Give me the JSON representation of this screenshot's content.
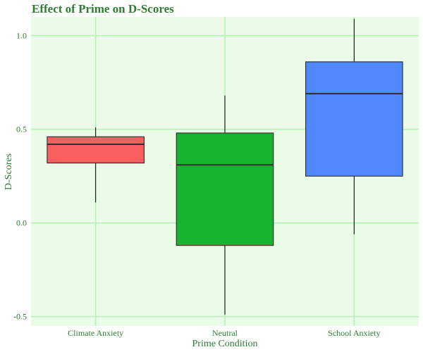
{
  "colors": {
    "text": "#2e7d32",
    "panel_background": "#eafbe8",
    "grid": "#b6f2b6",
    "box_outline": "#333333",
    "whisker": "#000000"
  },
  "chart_data": {
    "type": "box",
    "title": "Effect of Prime on D-Scores",
    "xlabel": "Prime Condition",
    "ylabel": "D-Scores",
    "ylim": [
      -0.55,
      1.1
    ],
    "yticks": [
      -0.5,
      0.0,
      0.5,
      1.0
    ],
    "ytick_labels": [
      "-0.5",
      "0.0",
      "0.5",
      "1.0"
    ],
    "grid": true,
    "categories": [
      "Climate Anxiety",
      "Neutral",
      "School Anxiety"
    ],
    "series": [
      {
        "category": "Climate Anxiety",
        "color": "#f8615f",
        "whisker_low": 0.11,
        "q1": 0.32,
        "median": 0.42,
        "q3": 0.46,
        "whisker_high": 0.51
      },
      {
        "category": "Neutral",
        "color": "#19b22f",
        "whisker_low": -0.49,
        "q1": -0.12,
        "median": 0.31,
        "q3": 0.48,
        "whisker_high": 0.68
      },
      {
        "category": "School Anxiety",
        "color": "#4f88ff",
        "whisker_low": -0.06,
        "q1": 0.25,
        "median": 0.69,
        "q3": 0.86,
        "whisker_high": 1.09
      }
    ]
  }
}
